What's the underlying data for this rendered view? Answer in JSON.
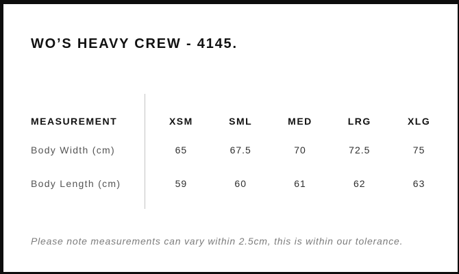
{
  "title": "WO’S HEAVY CREW - 4145.",
  "table": {
    "measurement_header": "MEASUREMENT",
    "size_headers": [
      "XSM",
      "SML",
      "MED",
      "LRG",
      "XLG"
    ],
    "rows": [
      {
        "label": "Body Width (cm)",
        "values": [
          "65",
          "67.5",
          "70",
          "72.5",
          "75"
        ]
      },
      {
        "label": "Body Length (cm)",
        "values": [
          "59",
          "60",
          "61",
          "62",
          "63"
        ]
      }
    ]
  },
  "footer_note": "Please note measurements can vary within 2.5cm, this is within our tolerance.",
  "colors": {
    "border": "#0d0d0d",
    "heading": "#111111",
    "label": "#545454",
    "value": "#2e2e2e",
    "note": "#7c7c7c",
    "divider": "#c3c3c3",
    "bg": "#ffffff"
  }
}
